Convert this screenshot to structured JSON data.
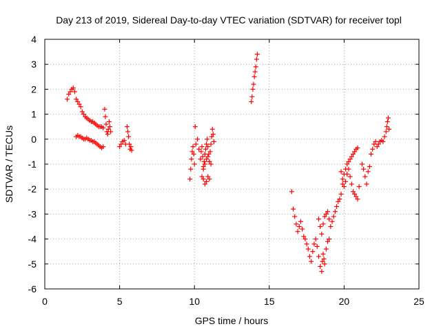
{
  "chart_data": {
    "type": "scatter",
    "title": "Day 213 of 2019, Sidereal Day-to-day VTEC variation (SDTVAR) for receiver topl",
    "xlabel": "GPS time / hours",
    "ylabel": "SDTVAR / TECUs",
    "xlim": [
      0,
      25
    ],
    "ylim": [
      -6,
      4
    ],
    "xticks": [
      "0",
      "5",
      "10",
      "15",
      "20",
      "25"
    ],
    "yticks": [
      "-6",
      "-5",
      "-4",
      "-3",
      "-2",
      "-1",
      "0",
      "1",
      "2",
      "3",
      "4"
    ],
    "grid": true,
    "marker": "plus",
    "color": "#ff0000",
    "series": [
      {
        "name": "SDTVAR",
        "x": [
          1.5,
          1.6,
          1.7,
          1.8,
          1.9,
          2.0,
          2.1,
          2.2,
          2.3,
          2.4,
          2.5,
          2.6,
          2.7,
          2.8,
          2.9,
          3.0,
          3.1,
          3.2,
          3.3,
          3.4,
          3.5,
          3.6,
          3.7,
          3.8,
          3.9,
          4.0,
          4.05,
          4.1,
          4.15,
          4.2,
          4.25,
          4.3,
          4.35,
          4.4,
          2.1,
          2.2,
          2.3,
          2.4,
          2.5,
          2.6,
          2.7,
          2.8,
          2.9,
          3.0,
          3.1,
          3.2,
          3.3,
          3.4,
          3.5,
          3.6,
          3.7,
          3.8,
          3.9,
          5.0,
          5.1,
          5.2,
          5.3,
          5.4,
          5.5,
          5.55,
          5.6,
          5.65,
          5.7,
          5.75,
          5.8,
          9.7,
          9.75,
          9.8,
          9.85,
          9.9,
          9.95,
          10.0,
          10.05,
          10.1,
          10.2,
          10.3,
          10.4,
          10.45,
          10.5,
          10.55,
          10.6,
          10.65,
          10.7,
          10.75,
          10.8,
          10.85,
          10.9,
          10.95,
          11.0,
          11.05,
          11.1,
          11.15,
          11.2,
          11.25,
          11.3,
          10.6,
          10.7,
          10.8,
          10.9,
          11.0,
          10.5,
          10.6,
          10.7,
          10.8,
          10.9,
          11.0,
          11.1,
          13.8,
          13.85,
          13.9,
          13.95,
          14.0,
          14.05,
          14.1,
          14.15,
          14.2,
          16.5,
          16.6,
          16.7,
          16.8,
          16.9,
          17.0,
          17.1,
          17.2,
          17.3,
          17.4,
          17.5,
          17.6,
          17.7,
          17.8,
          17.9,
          18.0,
          18.1,
          18.2,
          18.3,
          18.4,
          18.5,
          18.55,
          18.6,
          18.65,
          18.7,
          18.8,
          18.9,
          19.0,
          18.3,
          18.4,
          18.5,
          18.6,
          18.7,
          18.8,
          18.9,
          19.0,
          19.1,
          19.2,
          19.3,
          19.4,
          19.5,
          19.6,
          19.7,
          19.8,
          19.9,
          20.0,
          20.1,
          20.2,
          20.3,
          20.4,
          20.5,
          20.6,
          20.7,
          20.8,
          20.9,
          19.8,
          19.9,
          20.0,
          20.1,
          20.2,
          20.3,
          20.4,
          20.5,
          20.6,
          20.7,
          20.8,
          20.9,
          21.0,
          21.2,
          21.3,
          21.4,
          21.5,
          21.6,
          21.7,
          21.8,
          21.9,
          22.0,
          22.1,
          22.2,
          22.3,
          22.4,
          22.5,
          22.6,
          22.7,
          22.8,
          22.85,
          22.9,
          22.95,
          23.0
        ],
        "y": [
          1.6,
          1.8,
          1.9,
          2.0,
          2.05,
          1.9,
          1.6,
          1.5,
          1.4,
          1.3,
          1.1,
          1.0,
          0.9,
          0.85,
          0.8,
          0.75,
          0.7,
          0.7,
          0.65,
          0.6,
          0.55,
          0.5,
          0.5,
          0.5,
          0.45,
          1.2,
          0.9,
          0.6,
          0.3,
          0.2,
          0.4,
          0.7,
          0.5,
          0.3,
          0.1,
          0.15,
          0.1,
          0.1,
          0.05,
          0.0,
          0.0,
          0.05,
          0.0,
          -0.05,
          -0.05,
          -0.1,
          -0.1,
          -0.15,
          -0.2,
          -0.25,
          -0.3,
          -0.35,
          -0.3,
          -0.3,
          -0.2,
          -0.1,
          -0.05,
          -0.2,
          0.5,
          0.3,
          0.1,
          -0.2,
          -0.4,
          -0.3,
          -0.45,
          -1.6,
          -1.2,
          -0.8,
          -0.5,
          -0.3,
          -0.6,
          -1.0,
          0.5,
          -0.2,
          0.0,
          -0.4,
          -0.8,
          -0.5,
          -0.3,
          -0.7,
          -1.1,
          -0.9,
          -0.6,
          -0.4,
          -0.2,
          0.0,
          -0.3,
          -0.6,
          -0.9,
          -0.5,
          -0.2,
          0.1,
          0.4,
          0.2,
          -0.1,
          -1.6,
          -1.8,
          -1.7,
          -1.5,
          -1.6,
          -1.5,
          -1.2,
          -1.0,
          -0.8,
          -0.7,
          -0.9,
          -1.0,
          1.5,
          1.7,
          2.0,
          2.2,
          2.5,
          2.7,
          2.9,
          3.2,
          3.4,
          -2.1,
          -2.8,
          -3.1,
          -3.4,
          -3.7,
          -3.5,
          -3.3,
          -3.6,
          -3.9,
          -4.0,
          -4.2,
          -4.4,
          -4.7,
          -4.9,
          -4.5,
          -4.2,
          -4.0,
          -4.3,
          -4.7,
          -5.1,
          -5.3,
          -4.9,
          -4.6,
          -4.8,
          -5.0,
          -4.4,
          -4.1,
          -4.0,
          -3.2,
          -3.5,
          -3.8,
          -3.4,
          -3.1,
          -3.0,
          -2.9,
          -3.2,
          -3.5,
          -3.3,
          -3.1,
          -2.9,
          -2.7,
          -2.5,
          -2.4,
          -2.2,
          -1.8,
          -1.4,
          -1.2,
          -1.0,
          -0.9,
          -0.8,
          -0.7,
          -0.6,
          -0.5,
          -0.4,
          -0.35,
          -1.3,
          -1.6,
          -1.9,
          -1.7,
          -1.4,
          -1.2,
          -1.5,
          -1.8,
          -2.1,
          -2.2,
          -2.3,
          -2.4,
          -1.9,
          -1.0,
          -1.2,
          -1.5,
          -1.8,
          -1.3,
          -1.1,
          -0.6,
          -0.4,
          -0.2,
          -0.1,
          -0.3,
          -0.2,
          -0.1,
          -0.05,
          -0.1,
          0.1,
          0.3,
          0.5,
          0.7,
          0.85,
          0.4
        ]
      }
    ]
  }
}
